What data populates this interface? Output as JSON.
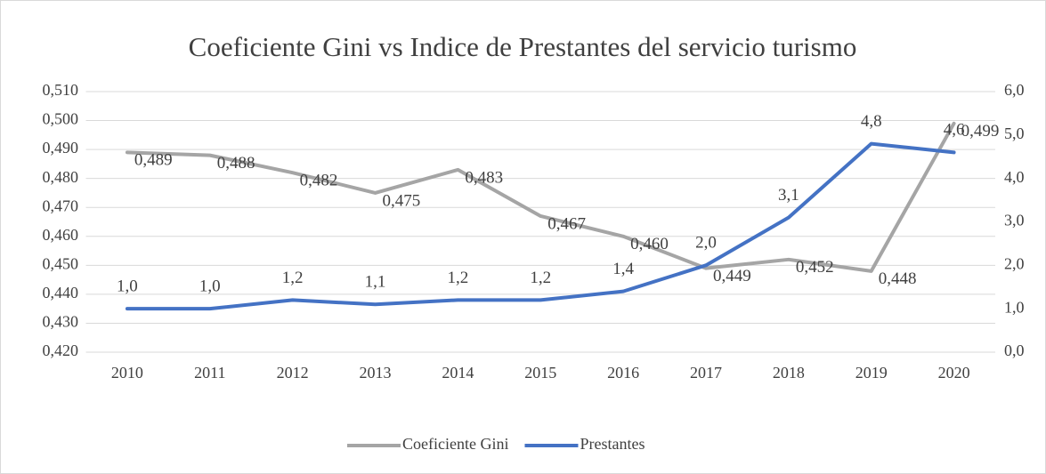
{
  "chart_data": {
    "type": "line",
    "title": "Coeficiente Gini vs Indice de Prestantes del servicio turismo",
    "categories": [
      "2010",
      "2011",
      "2012",
      "2013",
      "2014",
      "2015",
      "2016",
      "2017",
      "2018",
      "2019",
      "2020"
    ],
    "series": [
      {
        "name": "Coeficiente Gini",
        "color": "#a5a5a5",
        "axis": "y",
        "values": [
          0.489,
          0.488,
          0.482,
          0.475,
          0.483,
          0.467,
          0.46,
          0.449,
          0.452,
          0.448,
          0.499
        ],
        "value_labels": [
          "0,489",
          "0,488",
          "0,482",
          "0,475",
          "0,483",
          "0,467",
          "0,460",
          "0,449",
          "0,452",
          "0,448",
          "0,499"
        ]
      },
      {
        "name": "Prestantes",
        "color": "#4472c4",
        "axis": "y2",
        "values": [
          1.0,
          1.0,
          1.2,
          1.1,
          1.2,
          1.2,
          1.4,
          2.0,
          3.1,
          4.8,
          4.6
        ],
        "value_labels": [
          "1,0",
          "1,0",
          "1,2",
          "1,1",
          "1,2",
          "1,2",
          "1,4",
          "2,0",
          "3,1",
          "4,8",
          "4,6"
        ]
      }
    ],
    "ylim": [
      0.42,
      0.51
    ],
    "yticks": [
      {
        "value": 0.42,
        "label": "0,420"
      },
      {
        "value": 0.43,
        "label": "0,430"
      },
      {
        "value": 0.44,
        "label": "0,440"
      },
      {
        "value": 0.45,
        "label": "0,450"
      },
      {
        "value": 0.46,
        "label": "0,460"
      },
      {
        "value": 0.47,
        "label": "0,470"
      },
      {
        "value": 0.48,
        "label": "0,480"
      },
      {
        "value": 0.49,
        "label": "0,490"
      },
      {
        "value": 0.5,
        "label": "0,500"
      },
      {
        "value": 0.51,
        "label": "0,510"
      }
    ],
    "y2lim": [
      0,
      6
    ],
    "y2ticks": [
      {
        "value": 0,
        "label": "0,0"
      },
      {
        "value": 1,
        "label": "1,0"
      },
      {
        "value": 2,
        "label": "2,0"
      },
      {
        "value": 3,
        "label": "3,0"
      },
      {
        "value": 4,
        "label": "4,0"
      },
      {
        "value": 5,
        "label": "5,0"
      },
      {
        "value": 6,
        "label": "6,0"
      }
    ],
    "grid": true,
    "legend": "bottom"
  }
}
